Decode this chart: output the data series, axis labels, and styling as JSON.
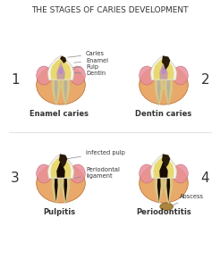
{
  "title": "THE STAGES OF CARIES DEVELOPMENT",
  "title_fontsize": 6.5,
  "background_color": "#ffffff",
  "labels": {
    "stage1_num": "1",
    "stage2_num": "2",
    "stage3_num": "3",
    "stage4_num": "4",
    "stage1_name": "Enamel caries",
    "stage2_name": "Dentin caries",
    "stage3_name": "Pulpitis",
    "stage4_name": "Periodontitis",
    "caries": "Caries",
    "enamel": "Enamel",
    "pulp": "Pulp",
    "dentin": "Dentin",
    "infected_pulp": "infected pulp",
    "periodontal": "Periodontal\nligament",
    "abscess": "Abscess"
  },
  "colors": {
    "bone": "#E8A96A",
    "bone_edge": "#C07840",
    "enamel_outer": "#F2EFE0",
    "enamel_edge": "#CCCAB0",
    "dentin": "#E8D870",
    "pulp_chamber": "#C8A0A0",
    "root_fill": "#B8B0A0",
    "gum": "#E8909A",
    "gum_edge": "#C06070",
    "caries_dark": "#2A1A08",
    "infected_dark": "#1A0C04",
    "abscess_color": "#A07828",
    "abscess_edge": "#705010",
    "line_color": "#666666",
    "text_color": "#333333",
    "background": "#ffffff",
    "pulp_purple": "#B888CC",
    "white_tooth": "#F5F3EC",
    "root_dentin": "#D8C878",
    "periodontal_line": "#D0B878"
  }
}
